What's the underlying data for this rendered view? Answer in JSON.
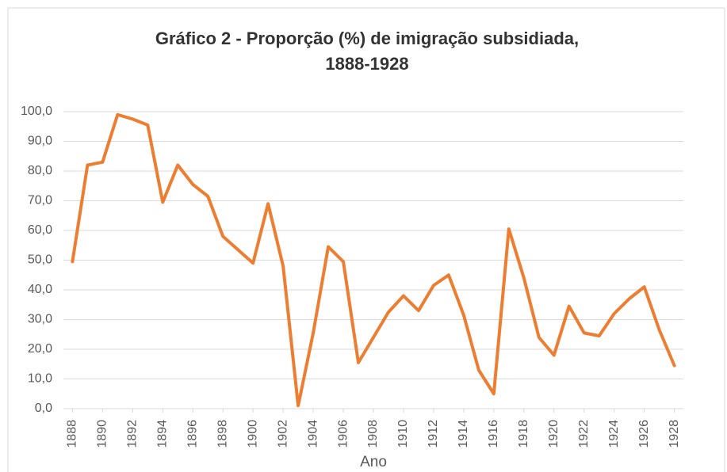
{
  "chart_data": {
    "type": "line",
    "title": [
      "Gráfico 2 - Proporção (%) de imigração subsidiada,",
      "1888-1928"
    ],
    "x_label": "Ano",
    "x": [
      1888,
      1889,
      1890,
      1891,
      1892,
      1893,
      1894,
      1895,
      1896,
      1897,
      1898,
      1899,
      1900,
      1901,
      1902,
      1903,
      1904,
      1905,
      1906,
      1907,
      1908,
      1909,
      1910,
      1911,
      1912,
      1913,
      1914,
      1915,
      1916,
      1917,
      1918,
      1919,
      1920,
      1921,
      1922,
      1923,
      1924,
      1925,
      1926,
      1927,
      1928
    ],
    "values": [
      49.5,
      82,
      83,
      99,
      97.5,
      95.5,
      69.5,
      82,
      75.5,
      71.5,
      58,
      53.5,
      49,
      69,
      48,
      1,
      25.5,
      54.5,
      49.5,
      15.5,
      24,
      32.5,
      38,
      33,
      41.5,
      45,
      31.5,
      13,
      5,
      60.5,
      44,
      24,
      18,
      34.5,
      25.5,
      24.5,
      32,
      37,
      41,
      26.5,
      14.5
    ],
    "color": "#ed7d31",
    "xlim": [
      1887.4,
      1928.6
    ],
    "xticks": [
      1888,
      1890,
      1892,
      1894,
      1896,
      1898,
      1900,
      1902,
      1904,
      1906,
      1908,
      1910,
      1912,
      1914,
      1916,
      1918,
      1920,
      1922,
      1924,
      1926,
      1928
    ],
    "ylim": [
      0,
      100
    ],
    "yticks": [
      {
        "value": 0,
        "label": "0,0"
      },
      {
        "value": 10,
        "label": "10,0"
      },
      {
        "value": 20,
        "label": "20,0"
      },
      {
        "value": 30,
        "label": "30,0"
      },
      {
        "value": 40,
        "label": "40,0"
      },
      {
        "value": 50,
        "label": "50,0"
      },
      {
        "value": 60,
        "label": "60,0"
      },
      {
        "value": 70,
        "label": "70,0"
      },
      {
        "value": 80,
        "label": "80,0"
      },
      {
        "value": 90,
        "label": "90,0"
      },
      {
        "value": 100,
        "label": "100,0"
      }
    ],
    "grid": true
  }
}
